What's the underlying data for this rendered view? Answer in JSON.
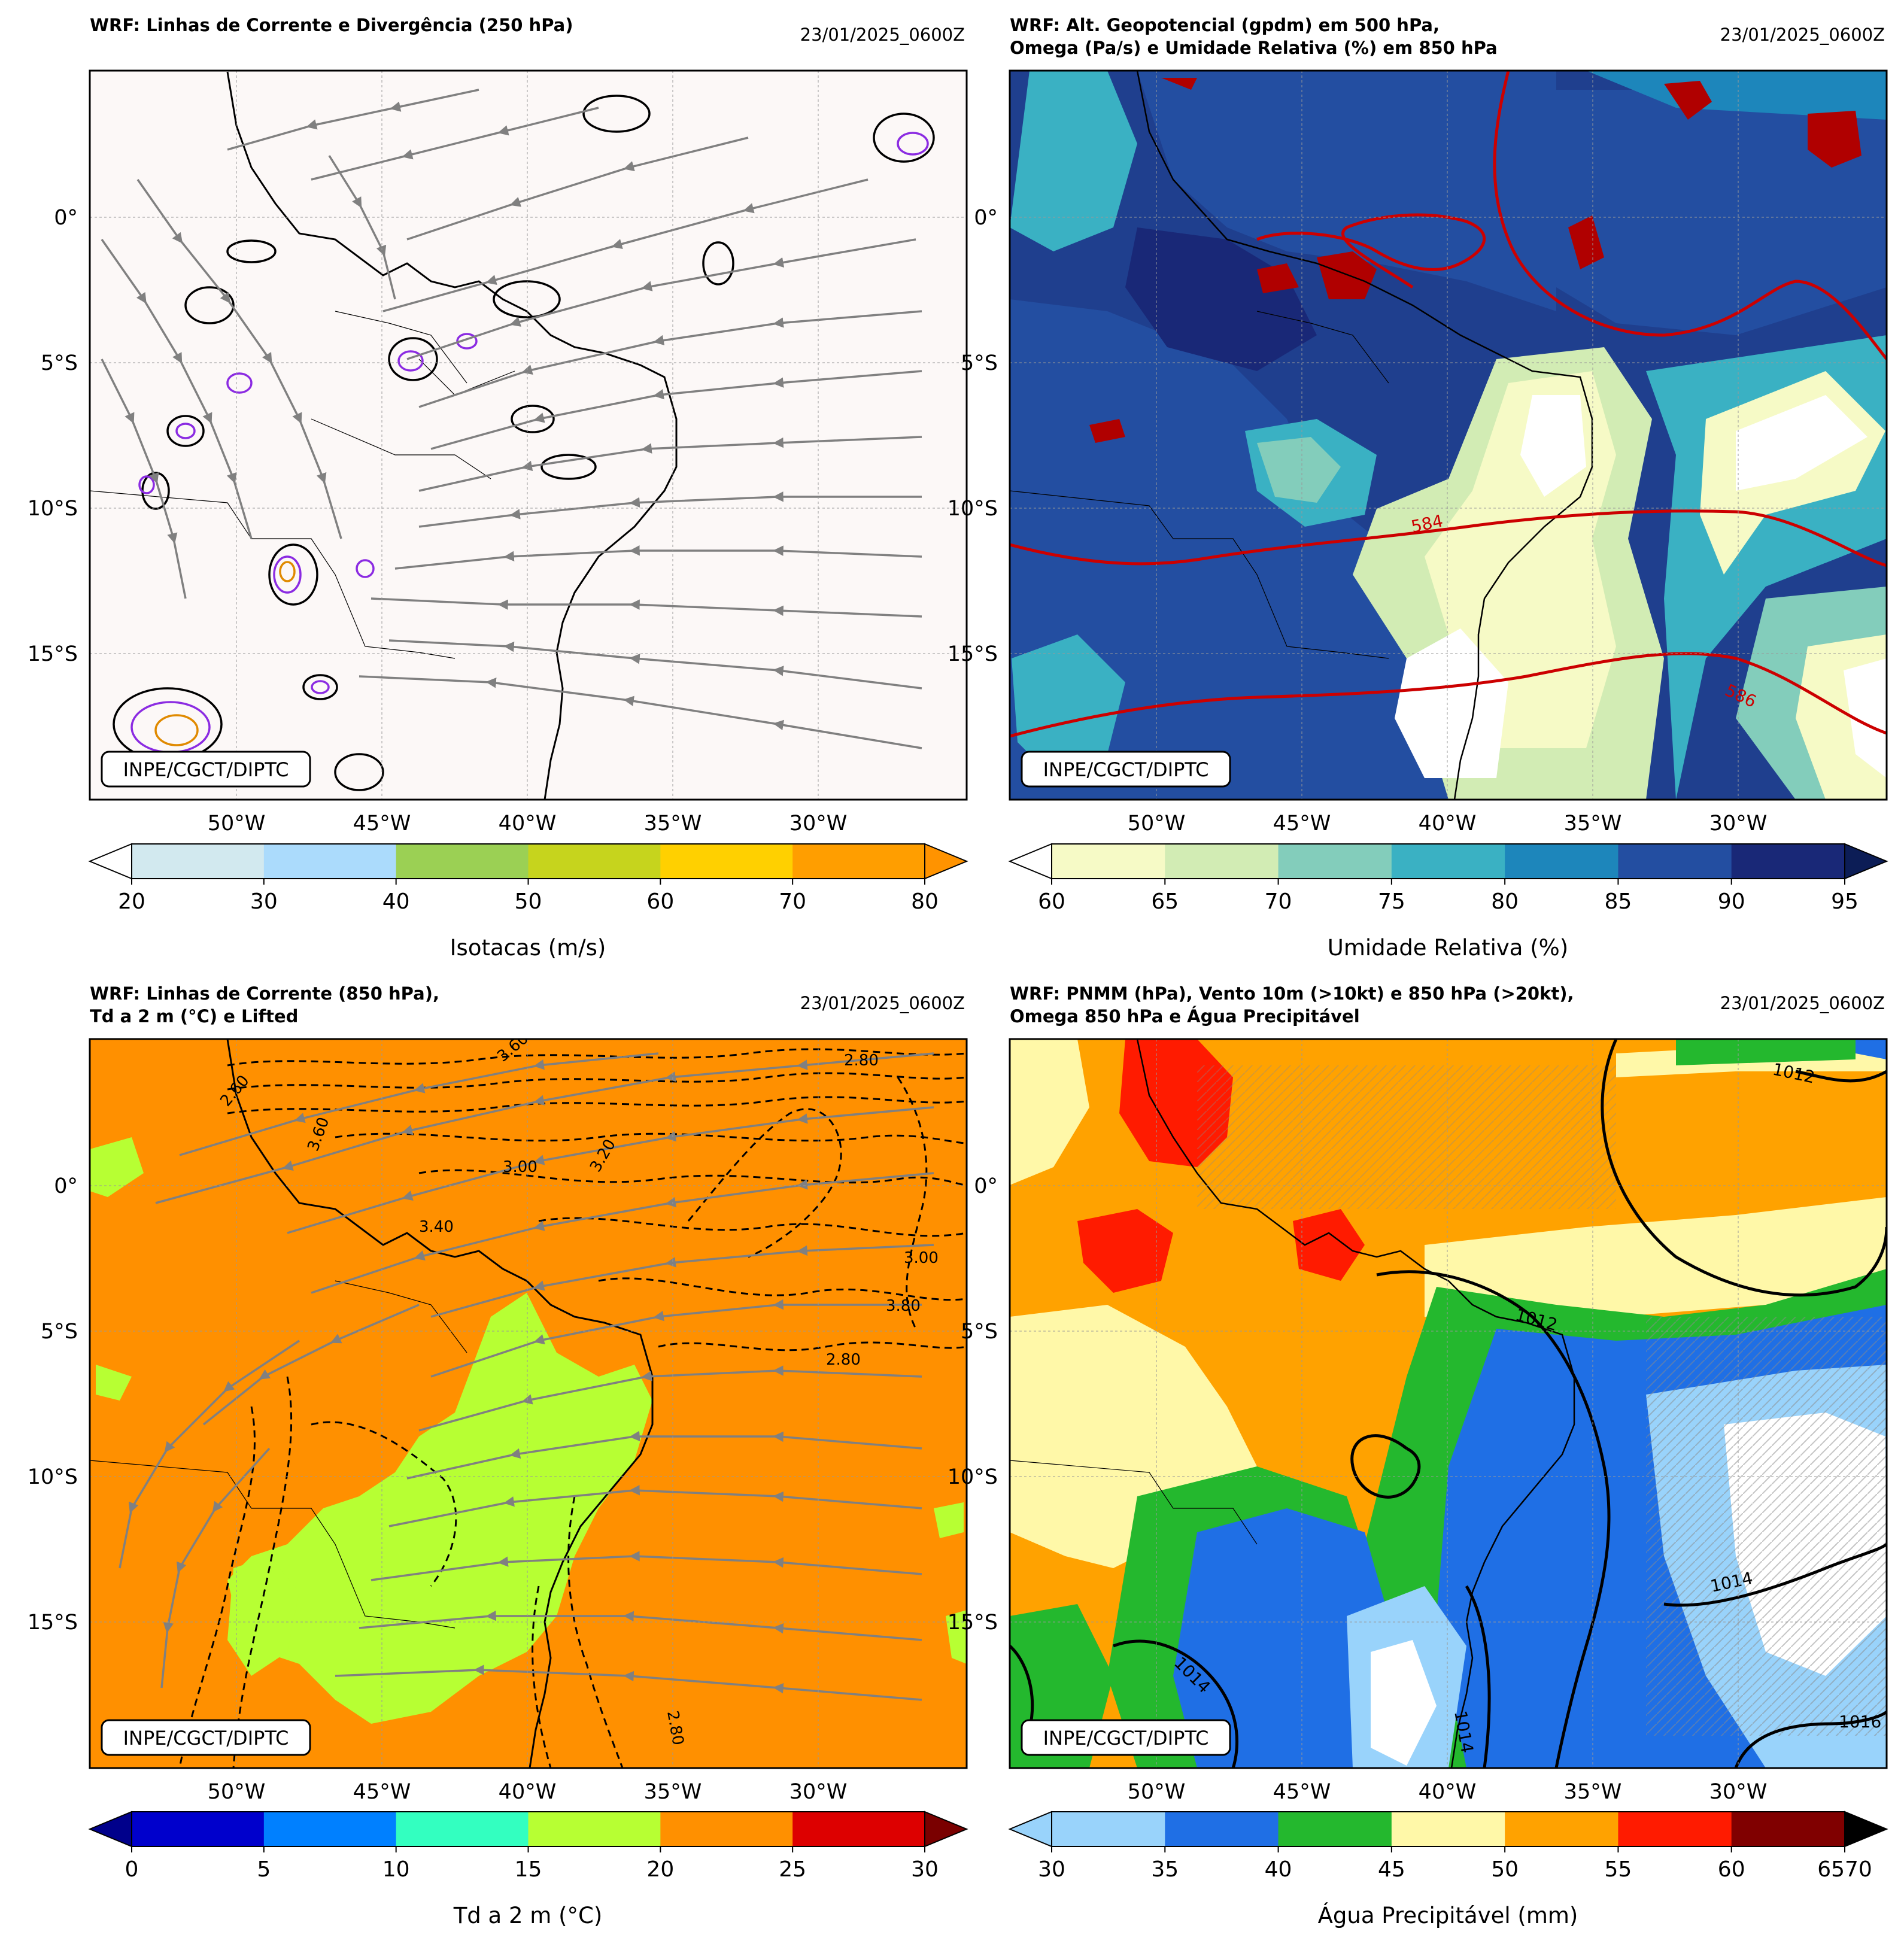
{
  "credit": "INPE/CGCT/DIPTC",
  "lon_labels": [
    "50°W",
    "45°W",
    "40°W",
    "35°W",
    "30°W"
  ],
  "lat_labels": [
    "0°",
    "5°S",
    "10°S",
    "15°S"
  ],
  "colors": {
    "land_bg": "#fcf8f7",
    "grid": "#888888",
    "stream": "#808080",
    "geopot": "#cc0000"
  },
  "panels": [
    {
      "id": "p1",
      "title_lines": [
        "WRF: Linhas de Corrente e Divergência (250 hPa)"
      ],
      "date": "23/01/2025_0600Z",
      "background": "#fcf8f7",
      "colorbar": {
        "label": "Isotacas (m/s)",
        "ticks": [
          "20",
          "30",
          "40",
          "50",
          "60",
          "70",
          "80"
        ],
        "colors": [
          "#d2e9ef",
          "#abdbfc",
          "#9bd054",
          "#c6d41d",
          "#ffd000",
          "#ff9e00"
        ],
        "under": "#ffffff",
        "over": "#ff9300"
      }
    },
    {
      "id": "p2",
      "title_lines": [
        "WRF: Alt. Geopotencial (gpdm) em 500 hPa,",
        "Omega (Pa/s) e Umidade Relativa (%) em 850 hPa"
      ],
      "date": "23/01/2025_0600Z",
      "background": "#1f3f8e",
      "contour_labels": [
        "584",
        "586"
      ],
      "colorbar": {
        "label": "Umidade Relativa (%)",
        "ticks": [
          "60",
          "65",
          "70",
          "75",
          "80",
          "85",
          "90",
          "95"
        ],
        "colors": [
          "#f6fac6",
          "#d2ecb4",
          "#83cdbb",
          "#3ab1c3",
          "#1d86bb",
          "#234ea1",
          "#192877"
        ],
        "under": "#ffffff",
        "over": "#0c1d56"
      }
    },
    {
      "id": "p3",
      "title_lines": [
        "WRF: Linhas de Corrente (850 hPa),",
        "Td a 2 m (°C) e Lifted"
      ],
      "date": "23/01/2025_0600Z",
      "background": "#ff9000",
      "contour_labels": [
        "3.60",
        "3.00",
        "3.40",
        "2.60",
        "2.80",
        "3.80",
        "3.20",
        "3.00",
        "2.80",
        "2.80",
        "3.60"
      ],
      "colorbar": {
        "label": "Td a 2 m (°C)",
        "ticks": [
          "0",
          "5",
          "10",
          "15",
          "20",
          "25",
          "30"
        ],
        "colors": [
          "#0000cc",
          "#0080ff",
          "#33ffc0",
          "#b7ff33",
          "#ff9000",
          "#dd0000"
        ],
        "under": "#00008b",
        "over": "#7a0000"
      }
    },
    {
      "id": "p4",
      "title_lines": [
        "WRF: PNMM (hPa), Vento 10m (>10kt) e 850 hPa (>20kt),",
        "Omega 850 hPa e Água Precipitável"
      ],
      "date": "23/01/2025_0600Z",
      "background": "#ffa200",
      "contour_labels": [
        "1012",
        "1012",
        "1014",
        "1014",
        "1014",
        "1016"
      ],
      "colorbar": {
        "label": "Água Precipitável (mm)",
        "ticks": [
          "30",
          "35",
          "40",
          "45",
          "50",
          "55",
          "60",
          "6570"
        ],
        "colors": [
          "#99d3fb",
          "#1f6fe5",
          "#24b82e",
          "#fff8a8",
          "#ffa200",
          "#ff1b00",
          "#800000"
        ],
        "under": "#99d3fb",
        "over": "#000000"
      }
    }
  ]
}
